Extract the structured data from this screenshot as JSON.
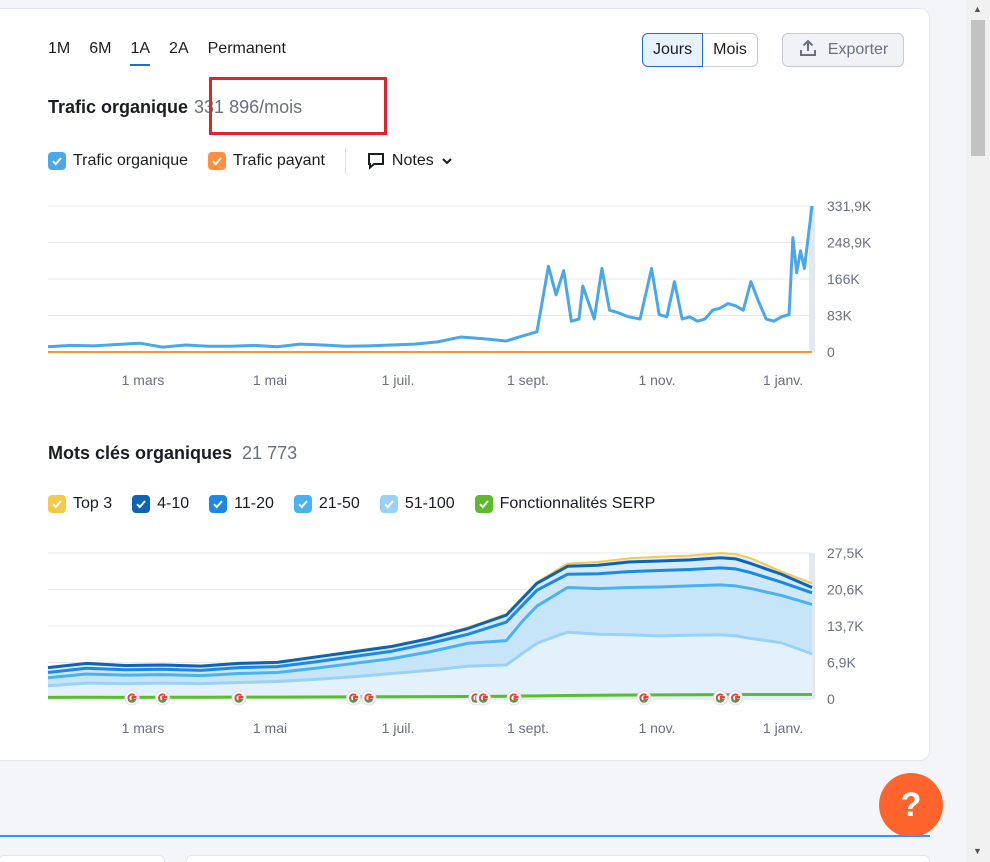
{
  "periods": [
    "1M",
    "6M",
    "1A",
    "2A",
    "Permanent"
  ],
  "active_period": "1A",
  "granularity": {
    "days": "Jours",
    "months": "Mois",
    "selected": "Jours"
  },
  "export_label": "Exporter",
  "traffic": {
    "title": "Trafic organique",
    "value": "331 896/mois",
    "legend": {
      "organic": "Trafic organique",
      "paid": "Trafic payant",
      "notes": "Notes"
    }
  },
  "keywords": {
    "title": "Mots clés organiques",
    "value": "21 773",
    "legend": [
      "Top 3",
      "4-10",
      "11-20",
      "21-50",
      "51-100",
      "Fonctionnalités SERP"
    ]
  },
  "colors": {
    "organic": "#4aa7ea",
    "paid": "#ff8f3f",
    "top3": "#f7c948",
    "r4_10": "#0d63b8",
    "r11_20": "#1a8ae6",
    "r21_50": "#48b3f0",
    "r51_100": "#9ad2f7",
    "serp": "#5cbc2e",
    "accent": "#1f6fd6",
    "help": "#ff642d"
  },
  "chart_data": [
    {
      "type": "line",
      "title": "Trafic organique",
      "x_labels": [
        "1 mars",
        "1 mai",
        "1 juil.",
        "1 sept.",
        "1 nov.",
        "1 janv."
      ],
      "y_ticks": [
        "331,9K",
        "248,9K",
        "166K",
        "83K",
        "0"
      ],
      "ylim": [
        0,
        331896
      ],
      "series": [
        {
          "name": "Trafic organique",
          "x": [
            0,
            0.03,
            0.06,
            0.09,
            0.12,
            0.15,
            0.18,
            0.21,
            0.24,
            0.27,
            0.3,
            0.33,
            0.36,
            0.39,
            0.42,
            0.45,
            0.48,
            0.51,
            0.54,
            0.57,
            0.6,
            0.62,
            0.64,
            0.655,
            0.665,
            0.675,
            0.685,
            0.695,
            0.7,
            0.705,
            0.715,
            0.725,
            0.735,
            0.745,
            0.76,
            0.775,
            0.79,
            0.8,
            0.81,
            0.82,
            0.83,
            0.84,
            0.85,
            0.86,
            0.87,
            0.88,
            0.89,
            0.9,
            0.91,
            0.92,
            0.93,
            0.94,
            0.95,
            0.96,
            0.97,
            0.975,
            0.98,
            0.985,
            0.99,
            1.0
          ],
          "values": [
            12000,
            15000,
            14000,
            17000,
            20000,
            11000,
            16000,
            13000,
            13000,
            15000,
            12000,
            18000,
            16000,
            13000,
            14000,
            16000,
            18000,
            23000,
            34000,
            30000,
            25000,
            36000,
            46000,
            195000,
            130000,
            185000,
            70000,
            75000,
            150000,
            125000,
            75000,
            190000,
            95000,
            90000,
            80000,
            75000,
            190000,
            85000,
            80000,
            160000,
            75000,
            80000,
            70000,
            75000,
            95000,
            100000,
            110000,
            105000,
            95000,
            160000,
            115000,
            75000,
            70000,
            80000,
            85000,
            260000,
            180000,
            230000,
            190000,
            331896
          ]
        },
        {
          "name": "Trafic payant",
          "x": [
            0,
            1
          ],
          "values": [
            0,
            0
          ]
        }
      ]
    },
    {
      "type": "area",
      "title": "Mots clés organiques",
      "x_labels": [
        "1 mars",
        "1 mai",
        "1 juil.",
        "1 sept.",
        "1 nov.",
        "1 janv."
      ],
      "y_ticks": [
        "27,5K",
        "20,6K",
        "13,7K",
        "6,9K",
        "0"
      ],
      "ylim": [
        0,
        27500
      ],
      "x": [
        0,
        0.05,
        0.1,
        0.15,
        0.2,
        0.25,
        0.3,
        0.35,
        0.4,
        0.45,
        0.5,
        0.55,
        0.6,
        0.62,
        0.64,
        0.68,
        0.72,
        0.76,
        0.8,
        0.84,
        0.88,
        0.9,
        0.92,
        0.96,
        1.0
      ],
      "series": [
        {
          "name": "Top 3",
          "values": [
            6000,
            6800,
            6400,
            6500,
            6300,
            6800,
            7000,
            8000,
            9000,
            10000,
            11500,
            13500,
            16000,
            19000,
            22000,
            25500,
            25800,
            26500,
            26800,
            27000,
            27500,
            27300,
            26500,
            24000,
            21800
          ]
        },
        {
          "name": "4-10",
          "values": [
            5900,
            6700,
            6300,
            6400,
            6200,
            6700,
            6900,
            7900,
            8900,
            9900,
            11400,
            13300,
            15800,
            18800,
            21800,
            25000,
            25200,
            25800,
            26000,
            26200,
            26600,
            26400,
            25500,
            23500,
            21000
          ]
        },
        {
          "name": "11-20",
          "values": [
            5000,
            5800,
            5500,
            5600,
            5400,
            5900,
            6100,
            7000,
            8000,
            9000,
            10500,
            12200,
            14500,
            17500,
            20500,
            23500,
            23600,
            24000,
            24200,
            24400,
            24700,
            24500,
            23800,
            22000,
            20000
          ]
        },
        {
          "name": "21-50",
          "values": [
            4000,
            4700,
            4500,
            4600,
            4400,
            4800,
            5000,
            5800,
            6700,
            7600,
            8900,
            10500,
            11000,
            14500,
            17500,
            21000,
            20800,
            21000,
            21100,
            21300,
            21500,
            21300,
            20800,
            19500,
            17800
          ]
        },
        {
          "name": "51-100",
          "values": [
            2500,
            3000,
            2900,
            3000,
            2900,
            3100,
            3300,
            3700,
            4200,
            4800,
            5400,
            6200,
            6400,
            8500,
            10500,
            12600,
            12200,
            12100,
            11900,
            12000,
            12100,
            11900,
            11400,
            10600,
            8500
          ]
        },
        {
          "name": "Fonctionnalités SERP",
          "values": [
            300,
            320,
            310,
            330,
            340,
            350,
            360,
            380,
            400,
            420,
            450,
            480,
            520,
            560,
            600,
            650,
            700,
            750,
            780,
            800,
            820,
            830,
            840,
            850,
            850
          ]
        }
      ],
      "serp_markers_at": [
        0.11,
        0.15,
        0.25,
        0.4,
        0.42,
        0.56,
        0.57,
        0.61,
        0.78,
        0.88,
        0.9
      ]
    }
  ]
}
